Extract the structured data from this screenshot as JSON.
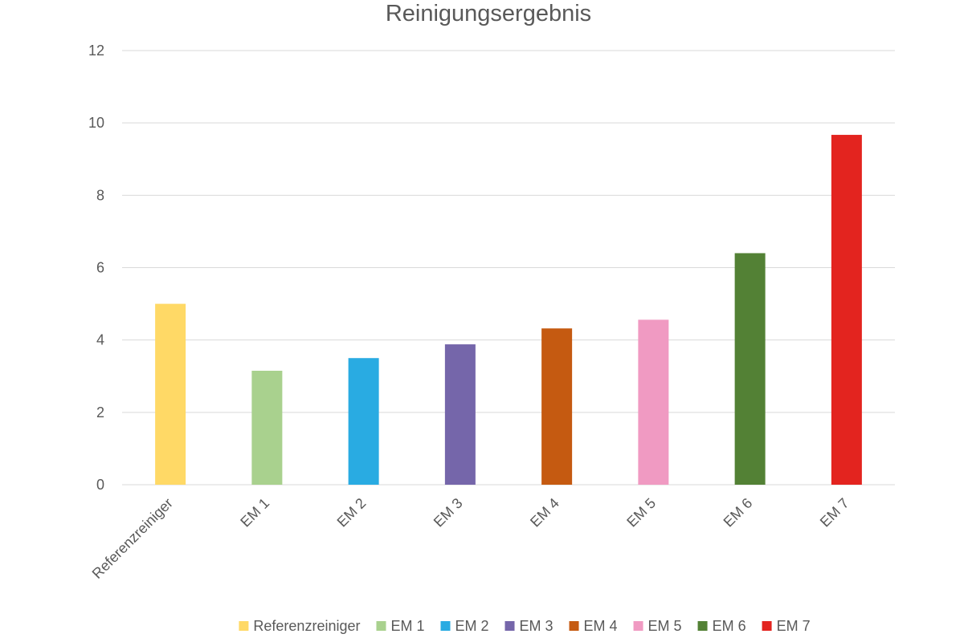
{
  "chart_data": {
    "type": "bar",
    "title": "Reinigungsergebnis",
    "xlabel": "",
    "ylabel": "",
    "ylim": [
      0,
      12
    ],
    "yticks": [
      0,
      2,
      4,
      6,
      8,
      10,
      12
    ],
    "grid": true,
    "legend_position": "bottom",
    "categories": [
      "Referenzreiniger",
      "EM 1",
      "EM 2",
      "EM 3",
      "EM 4",
      "EM 5",
      "EM 6",
      "EM 7"
    ],
    "values": [
      5.0,
      3.15,
      3.5,
      3.88,
      4.32,
      4.56,
      6.4,
      9.67
    ],
    "colors": [
      "#FFD966",
      "#A9D18E",
      "#29ABE2",
      "#7566AA",
      "#C55A11",
      "#F09AC2",
      "#538135",
      "#E3241F"
    ]
  }
}
